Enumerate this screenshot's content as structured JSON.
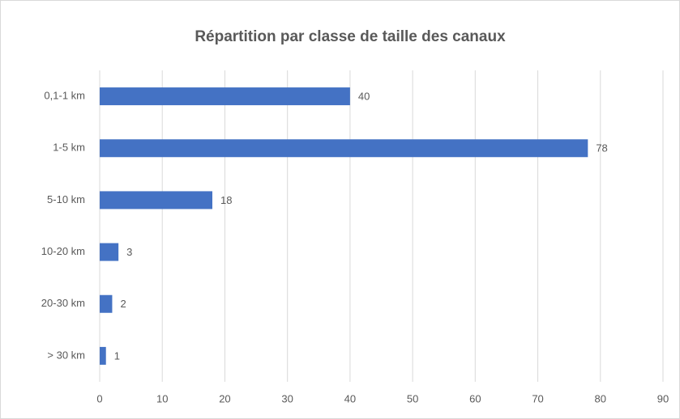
{
  "chart_data": {
    "type": "bar",
    "title": "Répartition par classe de taille des canaux",
    "categories": [
      "0,1-1 km",
      "1-5 km",
      "5-10 km",
      "10-20 km",
      "20-30 km",
      "> 30 km"
    ],
    "values": [
      40,
      78,
      18,
      3,
      2,
      1
    ],
    "color": "#4472c4",
    "xlim": [
      0,
      90
    ],
    "xticks": [
      0,
      10,
      20,
      30,
      40,
      50,
      60,
      70,
      80,
      90
    ],
    "grid": true,
    "data_labels": true
  }
}
